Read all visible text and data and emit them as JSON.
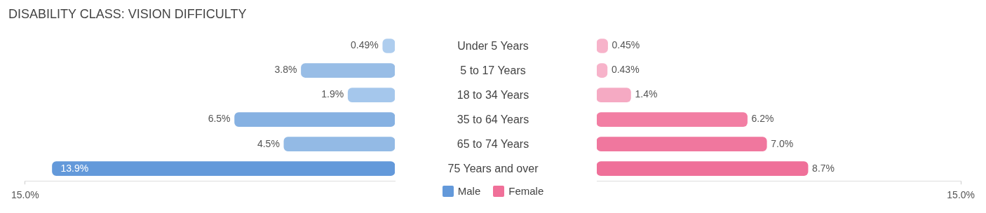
{
  "chart_data": [
    {
      "type": "bar",
      "orientation": "horizontal",
      "title": "DISABILITY CLASS: VISION DIFFICULTY",
      "categories": [
        "Under 5 Years",
        "5 to 17 Years",
        "18 to 34 Years",
        "35 to 64 Years",
        "65 to 74 Years",
        "75 Years and over"
      ],
      "series": [
        {
          "name": "Male",
          "color": "#6399da",
          "values": [
            0.49,
            3.8,
            1.9,
            6.5,
            4.5,
            13.9
          ],
          "value_labels": [
            "0.49%",
            "3.8%",
            "1.9%",
            "6.5%",
            "4.5%",
            "13.9%"
          ],
          "colors": [
            "#aecdee",
            "#98bde6",
            "#a5c7ec",
            "#86b1e2",
            "#93bae5",
            "#6399da"
          ]
        }
      ],
      "xlim": [
        15,
        0
      ],
      "xticks": [
        {
          "value": 15,
          "label": "15.0%"
        }
      ],
      "legend": "bottom"
    },
    {
      "type": "bar",
      "orientation": "horizontal",
      "categories": [
        null,
        null,
        null,
        null,
        null,
        null
      ],
      "series": [
        {
          "name": "Female",
          "color": "#f07099",
          "values": [
            0.45,
            0.43,
            1.4,
            6.2,
            7.0,
            8.7
          ],
          "value_labels": [
            "0.45%",
            "0.43%",
            "1.4%",
            "6.2%",
            "7.0%",
            "8.7%"
          ],
          "colors": [
            "#f7b3ca",
            "#f7b3ca",
            "#f5aac3",
            "#f27ea3",
            "#f0779e",
            "#ef7099"
          ]
        }
      ],
      "xlim": [
        0,
        15
      ],
      "xticks": [
        {
          "value": 15,
          "label": "15.0%"
        }
      ],
      "legend": "bottom"
    }
  ]
}
